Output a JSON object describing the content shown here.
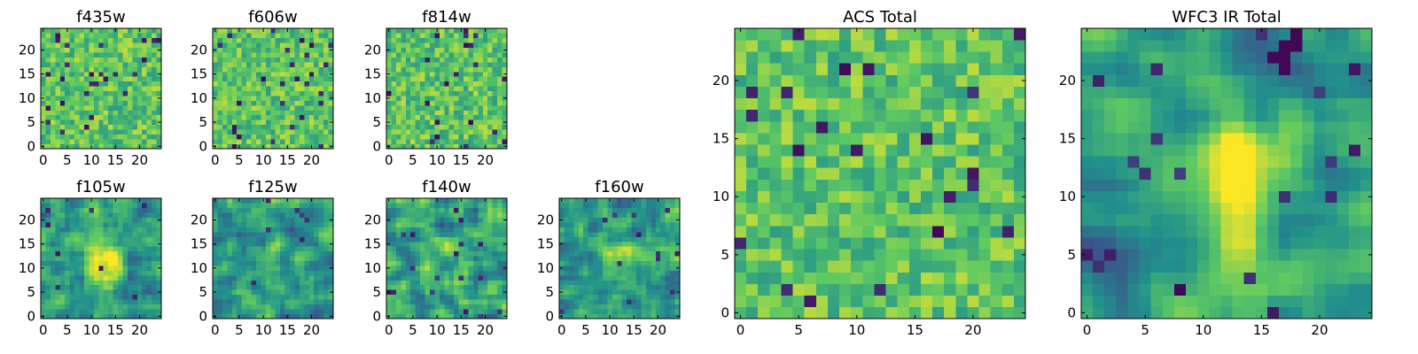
{
  "figure": {
    "colormap": "viridis",
    "colormap_stops": [
      "#440154",
      "#3b528b",
      "#21918c",
      "#5ec962",
      "#fde725"
    ]
  },
  "chart_data": [
    {
      "type": "heatmap",
      "title": "f435w",
      "xlim": [
        0,
        24
      ],
      "ylim": [
        0,
        24
      ],
      "grid_size": 25,
      "xticks": [
        0,
        5,
        10,
        15,
        20
      ],
      "yticks": [
        0,
        5,
        10,
        15,
        20
      ],
      "xlabel": "",
      "ylabel": "",
      "grid": false,
      "pattern": "uniform noise, mostly green-yellow with scattered dark pixels"
    },
    {
      "type": "heatmap",
      "title": "f606w",
      "xlim": [
        0,
        24
      ],
      "ylim": [
        0,
        24
      ],
      "grid_size": 25,
      "xticks": [
        0,
        5,
        10,
        15,
        20
      ],
      "yticks": [
        0,
        5,
        10,
        15,
        20
      ],
      "xlabel": "",
      "ylabel": "",
      "grid": false,
      "pattern": "uniform noise with several dark purple pixels"
    },
    {
      "type": "heatmap",
      "title": "f814w",
      "xlim": [
        0,
        24
      ],
      "ylim": [
        0,
        24
      ],
      "grid_size": 25,
      "xticks": [
        0,
        5,
        10,
        15,
        20
      ],
      "yticks": [
        0,
        5,
        10,
        15,
        20
      ],
      "xlabel": "",
      "ylabel": "",
      "grid": false,
      "pattern": "uniform noise with dark pixels near bottom"
    },
    {
      "type": "heatmap",
      "title": "f105w",
      "xlim": [
        0,
        24
      ],
      "ylim": [
        0,
        24
      ],
      "grid_size": 25,
      "xticks": [
        0,
        5,
        10,
        15,
        20
      ],
      "yticks": [
        0,
        5,
        10,
        15,
        20
      ],
      "xlabel": "",
      "ylabel": "",
      "grid": false,
      "pattern": "smooth field with bright central source near (12,12)"
    },
    {
      "type": "heatmap",
      "title": "f125w",
      "xlim": [
        0,
        24
      ],
      "ylim": [
        0,
        24
      ],
      "grid_size": 25,
      "xticks": [
        0,
        5,
        10,
        15,
        20
      ],
      "yticks": [
        0,
        5,
        10,
        15,
        20
      ],
      "xlabel": "",
      "ylabel": "",
      "grid": false,
      "pattern": "correlated noise, faint center"
    },
    {
      "type": "heatmap",
      "title": "f140w",
      "xlim": [
        0,
        24
      ],
      "ylim": [
        0,
        24
      ],
      "grid_size": 25,
      "xticks": [
        0,
        5,
        10,
        15,
        20
      ],
      "yticks": [
        0,
        5,
        10,
        15,
        20
      ],
      "xlabel": "",
      "ylabel": "",
      "grid": false,
      "pattern": "correlated noise with darker regions"
    },
    {
      "type": "heatmap",
      "title": "f160w",
      "xlim": [
        0,
        24
      ],
      "ylim": [
        0,
        24
      ],
      "grid_size": 25,
      "xticks": [
        0,
        5,
        10,
        15,
        20
      ],
      "yticks": [
        0,
        5,
        10,
        15,
        20
      ],
      "xlabel": "",
      "ylabel": "",
      "grid": false,
      "pattern": "smooth field with mild central brightening"
    },
    {
      "type": "heatmap",
      "title": "ACS Total",
      "xlim": [
        0,
        24
      ],
      "ylim": [
        0,
        24
      ],
      "grid_size": 25,
      "xticks": [
        0,
        5,
        10,
        15,
        20
      ],
      "yticks": [
        0,
        5,
        10,
        15,
        20
      ],
      "xlabel": "",
      "ylabel": "",
      "grid": false,
      "pattern": "coarse noise, mostly green-yellow with isolated dark pixels"
    },
    {
      "type": "heatmap",
      "title": "WFC3 IR Total",
      "xlim": [
        0,
        24
      ],
      "ylim": [
        0,
        24
      ],
      "grid_size": 25,
      "xticks": [
        0,
        5,
        10,
        15,
        20
      ],
      "yticks": [
        0,
        5,
        10,
        15,
        20
      ],
      "xlabel": "",
      "ylabel": "",
      "grid": false,
      "pattern": "smooth field with bright central source near (12,11) and dark patch at top (17,23)"
    }
  ]
}
